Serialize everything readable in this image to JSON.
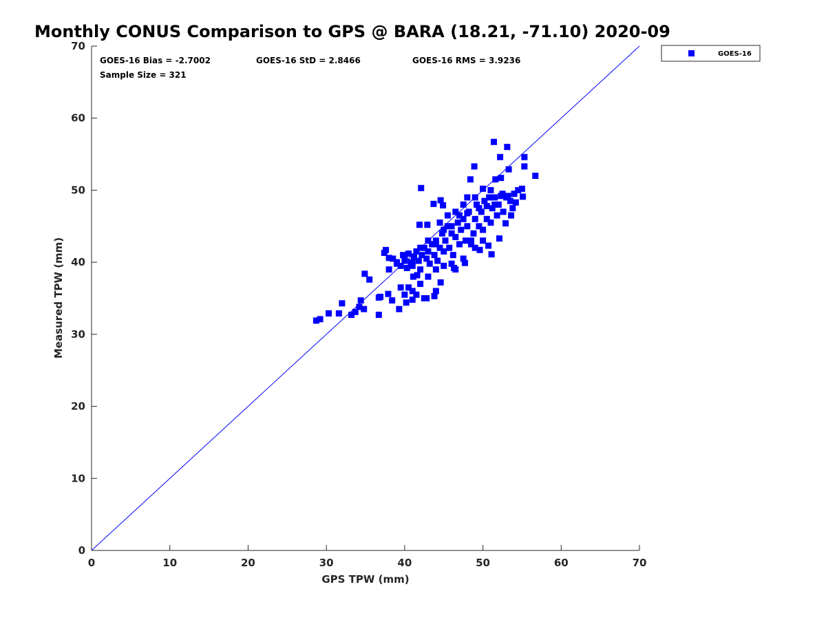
{
  "chart_data": {
    "type": "scatter",
    "title": "Monthly CONUS Comparison to GPS @ BARA (18.21, -71.10) 2020-09",
    "xlabel": "GPS TPW (mm)",
    "ylabel": "Measured TPW (mm)",
    "xlim": [
      0,
      70
    ],
    "ylim": [
      0,
      70
    ],
    "xticks": [
      0,
      10,
      20,
      30,
      40,
      50,
      60,
      70
    ],
    "yticks": [
      0,
      10,
      20,
      30,
      40,
      50,
      60,
      70
    ],
    "grid": false,
    "legend": {
      "placement": "top-right-outside",
      "entries": [
        "GOES-16"
      ]
    },
    "stats": {
      "bias": "GOES-16 Bias = -2.7002",
      "std": "GOES-16 StD = 2.8466",
      "rms": "GOES-16 RMS = 3.9236",
      "sample": "Sample Size = 321"
    },
    "reference_line": {
      "name": "1:1 line",
      "x": [
        0,
        70
      ],
      "y": [
        0,
        70
      ],
      "color": "#0000ff"
    },
    "series": [
      {
        "name": "GOES-16",
        "color": "#0000ff",
        "marker": "square",
        "points": [
          [
            28.7,
            31.9
          ],
          [
            29.2,
            32.1
          ],
          [
            30.3,
            32.9
          ],
          [
            31.6,
            32.9
          ],
          [
            32.0,
            34.3
          ],
          [
            33.2,
            32.7
          ],
          [
            33.7,
            33.1
          ],
          [
            34.2,
            33.8
          ],
          [
            34.4,
            34.7
          ],
          [
            34.8,
            33.5
          ],
          [
            34.9,
            38.4
          ],
          [
            35.5,
            37.6
          ],
          [
            36.7,
            32.7
          ],
          [
            36.7,
            35.1
          ],
          [
            36.9,
            35.2
          ],
          [
            37.4,
            41.3
          ],
          [
            37.6,
            41.7
          ],
          [
            38.0,
            39.0
          ],
          [
            37.9,
            35.6
          ],
          [
            38.4,
            34.7
          ],
          [
            39.3,
            33.5
          ],
          [
            42.1,
            50.3
          ],
          [
            41.9,
            45.2
          ],
          [
            42.9,
            45.2
          ],
          [
            43.7,
            48.1
          ],
          [
            44.6,
            48.6
          ],
          [
            44.9,
            47.9
          ],
          [
            44.6,
            37.2
          ],
          [
            48.4,
            51.5
          ],
          [
            48.9,
            53.3
          ],
          [
            51.4,
            56.7
          ],
          [
            53.1,
            56.0
          ],
          [
            52.2,
            54.6
          ],
          [
            55.3,
            54.6
          ],
          [
            55.3,
            53.3
          ],
          [
            56.7,
            52.0
          ],
          [
            53.3,
            52.9
          ],
          [
            52.3,
            51.7
          ],
          [
            51.6,
            51.5
          ],
          [
            51.1,
            41.1
          ],
          [
            49.6,
            41.7
          ],
          [
            50.7,
            42.3
          ],
          [
            47.7,
            39.9
          ],
          [
            46.3,
            39.2
          ],
          [
            43.8,
            35.3
          ],
          [
            42.5,
            35.0
          ],
          [
            41.0,
            34.8
          ],
          [
            40.2,
            34.4
          ],
          [
            41.1,
            38.0
          ],
          [
            41.6,
            38.2
          ],
          [
            53.6,
            46.5
          ],
          [
            52.9,
            45.4
          ],
          [
            52.1,
            43.3
          ],
          [
            55.1,
            49.1
          ],
          [
            38.5,
            40.5
          ],
          [
            39,
            40
          ],
          [
            39.5,
            39.5
          ],
          [
            39.8,
            41
          ],
          [
            40,
            40.2
          ],
          [
            40.3,
            39.2
          ],
          [
            40.5,
            41.2
          ],
          [
            40.8,
            40
          ],
          [
            41,
            39.5
          ],
          [
            41.2,
            40.8
          ],
          [
            41.5,
            41.5
          ],
          [
            41.8,
            40.2
          ],
          [
            42,
            39
          ],
          [
            42.2,
            41
          ],
          [
            42.5,
            42
          ],
          [
            42.8,
            40.5
          ],
          [
            43,
            41.5
          ],
          [
            43.2,
            39.8
          ],
          [
            43.5,
            42.5
          ],
          [
            43.8,
            41
          ],
          [
            44,
            43
          ],
          [
            44.2,
            40.2
          ],
          [
            44.5,
            42
          ],
          [
            44.8,
            44
          ],
          [
            45,
            41.5
          ],
          [
            45.2,
            43
          ],
          [
            45.5,
            45
          ],
          [
            45.7,
            42
          ],
          [
            46,
            44
          ],
          [
            46.2,
            41
          ],
          [
            46.5,
            43.5
          ],
          [
            46.8,
            45.5
          ],
          [
            47,
            42.5
          ],
          [
            47.2,
            44.5
          ],
          [
            47.5,
            46
          ],
          [
            47.8,
            43
          ],
          [
            48,
            45
          ],
          [
            48.2,
            47
          ],
          [
            48.5,
            42.5
          ],
          [
            48.8,
            44
          ],
          [
            49,
            46
          ],
          [
            49.2,
            48
          ],
          [
            49.5,
            45
          ],
          [
            49.8,
            47
          ],
          [
            50,
            44.5
          ],
          [
            50.2,
            48.5
          ],
          [
            50.5,
            46
          ],
          [
            50.8,
            49
          ],
          [
            51,
            45.5
          ],
          [
            51.2,
            47.5
          ],
          [
            51.5,
            49
          ],
          [
            51.8,
            46.5
          ],
          [
            52,
            48
          ],
          [
            52.3,
            49.2
          ],
          [
            52.6,
            47
          ],
          [
            53,
            49
          ],
          [
            53.5,
            48.5
          ],
          [
            54,
            49.5
          ],
          [
            54.5,
            50
          ],
          [
            55,
            50.2
          ],
          [
            53.8,
            47.5
          ],
          [
            45,
            39.5
          ],
          [
            46,
            39.8
          ],
          [
            44,
            39
          ],
          [
            43,
            38
          ],
          [
            42,
            37
          ],
          [
            41,
            36
          ],
          [
            40.5,
            36.5
          ],
          [
            40,
            35.5
          ],
          [
            39.5,
            36.5
          ],
          [
            41.5,
            35.5
          ],
          [
            42.8,
            35
          ],
          [
            44,
            36
          ],
          [
            46.5,
            39
          ],
          [
            47.5,
            40.5
          ],
          [
            48.5,
            43
          ],
          [
            49,
            42
          ],
          [
            50,
            43
          ],
          [
            44.5,
            45.5
          ],
          [
            45.5,
            46.5
          ],
          [
            46.5,
            47
          ],
          [
            47.5,
            48
          ],
          [
            48,
            49
          ],
          [
            49,
            49
          ],
          [
            50,
            50.2
          ],
          [
            51,
            50
          ],
          [
            46,
            45
          ],
          [
            45,
            44.5
          ],
          [
            44,
            42.5
          ],
          [
            43,
            43
          ],
          [
            42,
            42
          ],
          [
            41,
            40
          ],
          [
            40,
            40.8
          ],
          [
            39,
            39.8
          ],
          [
            38,
            40.6
          ],
          [
            47,
            46.5
          ],
          [
            48,
            46.8
          ],
          [
            49.5,
            47.5
          ],
          [
            50.5,
            47.8
          ],
          [
            51.5,
            48
          ],
          [
            52.5,
            49.5
          ],
          [
            53.2,
            49.2
          ],
          [
            54.2,
            48.3
          ]
        ]
      }
    ]
  }
}
